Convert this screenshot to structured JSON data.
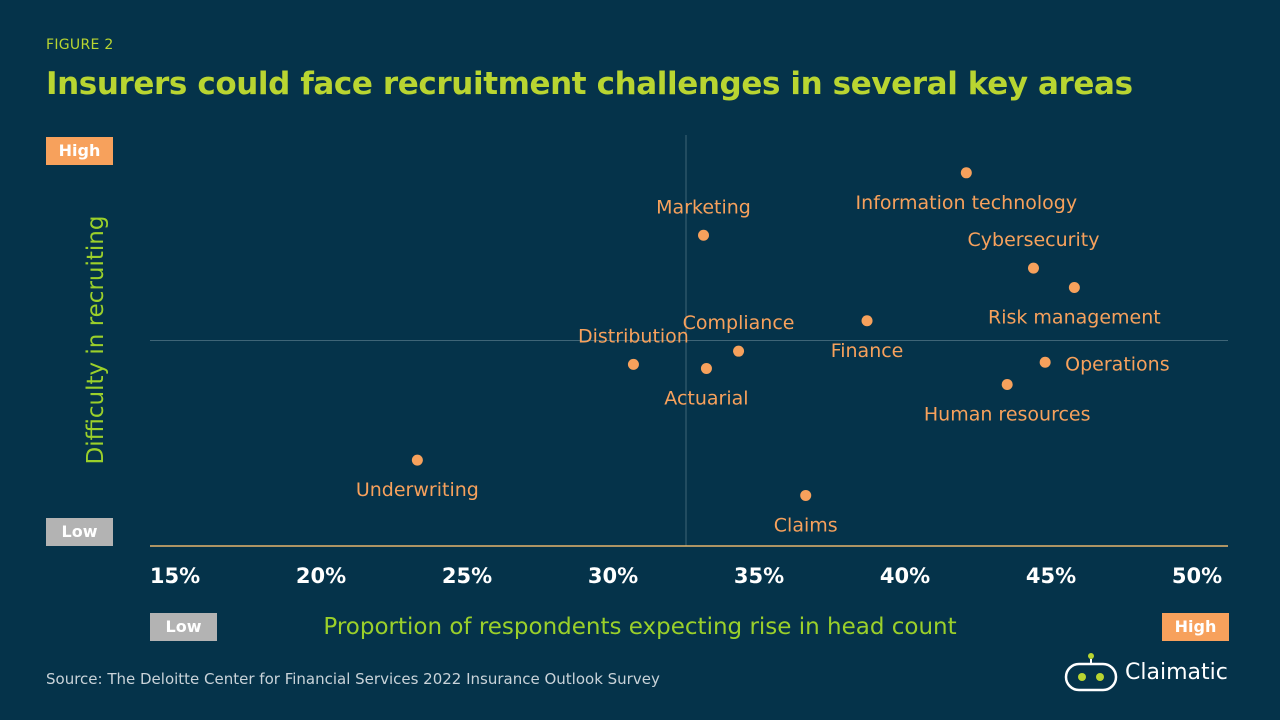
{
  "figure_label": "FIGURE 2",
  "source": "Source: The Deloitte Center for Financial Services 2022 Insurance Outlook Survey",
  "logo_text": "Claimatic",
  "tags": {
    "high": "High",
    "low": "Low"
  },
  "colors": {
    "background": "#05334a",
    "title": "#b9d531",
    "axis_label": "#9bd02a",
    "point": "#f7a15c",
    "high_tag": "#f7a15c",
    "low_tag": "#b3b3b3"
  },
  "chart_data": {
    "type": "scatter",
    "title": "Insurers could face recruitment challenges in several key areas",
    "xlabel": "Proportion of respondents expecting rise in head count",
    "ylabel": "Difficulty in recruiting",
    "xlim": [
      15,
      50
    ],
    "x_ticks": [
      "15%",
      "20%",
      "25%",
      "30%",
      "35%",
      "40%",
      "45%",
      "50%"
    ],
    "y_axis": "qualitative (Low to High), no numeric scale",
    "ylim": [
      0,
      100
    ],
    "reference_lines": {
      "x": 32.5,
      "y": 50
    },
    "grid": false,
    "points": [
      {
        "label": "Information technology",
        "x": 42.1,
        "y": 90.8
      },
      {
        "label": "Marketing",
        "x": 33.1,
        "y": 75.6
      },
      {
        "label": "Cybersecurity",
        "x": 44.4,
        "y": 67.6
      },
      {
        "label": "Risk management",
        "x": 45.8,
        "y": 62.9
      },
      {
        "label": "Finance",
        "x": 38.7,
        "y": 54.8
      },
      {
        "label": "Compliance",
        "x": 34.3,
        "y": 47.4
      },
      {
        "label": "Distribution",
        "x": 30.7,
        "y": 44.2
      },
      {
        "label": "Actuarial",
        "x": 33.2,
        "y": 43.2
      },
      {
        "label": "Operations",
        "x": 44.8,
        "y": 44.7
      },
      {
        "label": "Human resources",
        "x": 43.5,
        "y": 39.3
      },
      {
        "label": "Underwriting",
        "x": 23.3,
        "y": 20.9
      },
      {
        "label": "Claims",
        "x": 36.6,
        "y": 12.3
      }
    ]
  }
}
